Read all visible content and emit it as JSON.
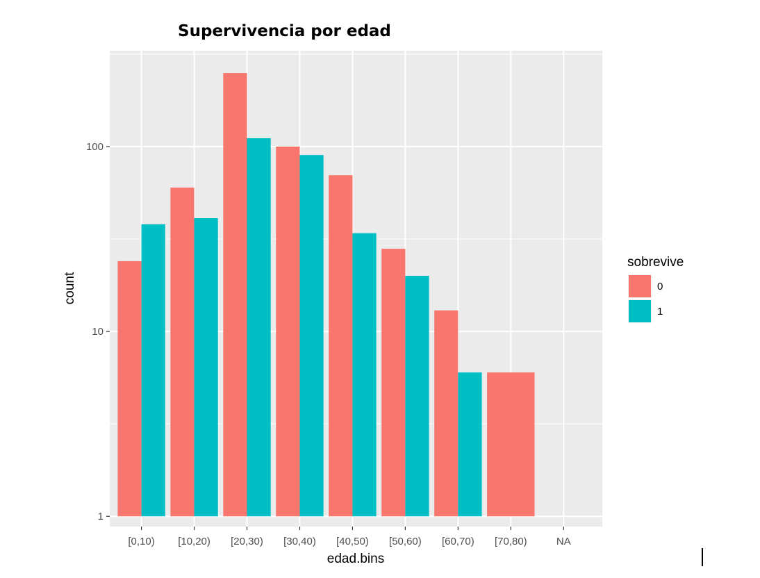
{
  "chart_data": {
    "type": "bar",
    "title": "Supervivencia por edad",
    "xlabel": "edad.bins",
    "ylabel": "count",
    "yscale": "log10",
    "ylim": [
      0.88,
      330
    ],
    "yticks": [
      1,
      10,
      100
    ],
    "ytick_labels": [
      "1",
      "10",
      "100"
    ],
    "categories": [
      "[0,10)",
      "[10,20)",
      "[20,30)",
      "[30,40)",
      "[40,50)",
      "[50,60)",
      "[60,70)",
      "[70,80)",
      "NA"
    ],
    "legend_title": "sobrevive",
    "legend_position": "right",
    "series": [
      {
        "name": "0",
        "color": "#F8766D",
        "values": [
          24,
          60,
          250,
          100,
          70,
          28,
          13,
          6,
          null
        ]
      },
      {
        "name": "1",
        "color": "#00BFC4",
        "values": [
          38,
          41,
          111,
          90,
          34,
          20,
          6,
          null,
          null
        ]
      }
    ],
    "colors": {
      "panel_bg": "#EBEBEB",
      "grid": "#FFFFFF",
      "red": "#F8766D",
      "teal": "#00BFC4"
    }
  }
}
